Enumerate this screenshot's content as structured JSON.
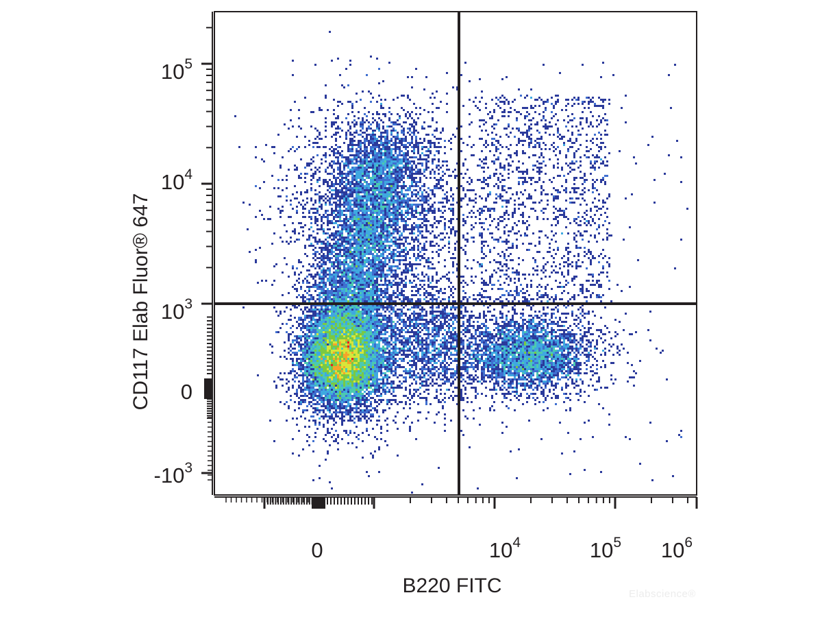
{
  "chart_data": {
    "type": "scatter",
    "subtype": "flow-cytometry-density-dot-plot",
    "xlabel": "B220 FITC",
    "ylabel": "CD117  Elab Fluor® 647",
    "x_scale": "biexponential",
    "y_scale": "biexponential",
    "x_ticks": [
      {
        "value": 0,
        "base": "0",
        "exp": ""
      },
      {
        "value": 10000,
        "base": "10",
        "exp": "4"
      },
      {
        "value": 100000,
        "base": "10",
        "exp": "5"
      },
      {
        "value": 1000000,
        "base": "10",
        "exp": "6"
      }
    ],
    "y_ticks": [
      {
        "value": -1000,
        "base": "-10",
        "exp": "3"
      },
      {
        "value": 0,
        "base": "0",
        "exp": ""
      },
      {
        "value": 1000,
        "base": "10",
        "exp": "3"
      },
      {
        "value": 10000,
        "base": "10",
        "exp": "4"
      },
      {
        "value": 100000,
        "base": "10",
        "exp": "5"
      }
    ],
    "gates": {
      "x": 5000,
      "y": 1000
    },
    "colormap": [
      "#2b3a9b",
      "#3f6fd0",
      "#3fa8e0",
      "#4cc9b0",
      "#7ac943",
      "#d7e53a",
      "#f6a32a",
      "#e8231f"
    ],
    "populations": [
      {
        "name": "",
        "description": "main dense cluster, CD117-low B220-negative",
        "x_center": 300,
        "y_center": 250,
        "weight": "high"
      },
      {
        "name": "",
        "description": "CD117-high B220-negative streak",
        "x_center": 800,
        "y_center": 4000,
        "weight": "medium"
      },
      {
        "name": "",
        "description": "B220-positive CD117-low cluster",
        "x_center": 25000,
        "y_center": 300,
        "weight": "medium"
      },
      {
        "name": "",
        "description": "sparse B220-positive CD117-high events",
        "x_center": 20000,
        "y_center": 5000,
        "weight": "low"
      }
    ]
  },
  "watermark": "Elabscience®"
}
